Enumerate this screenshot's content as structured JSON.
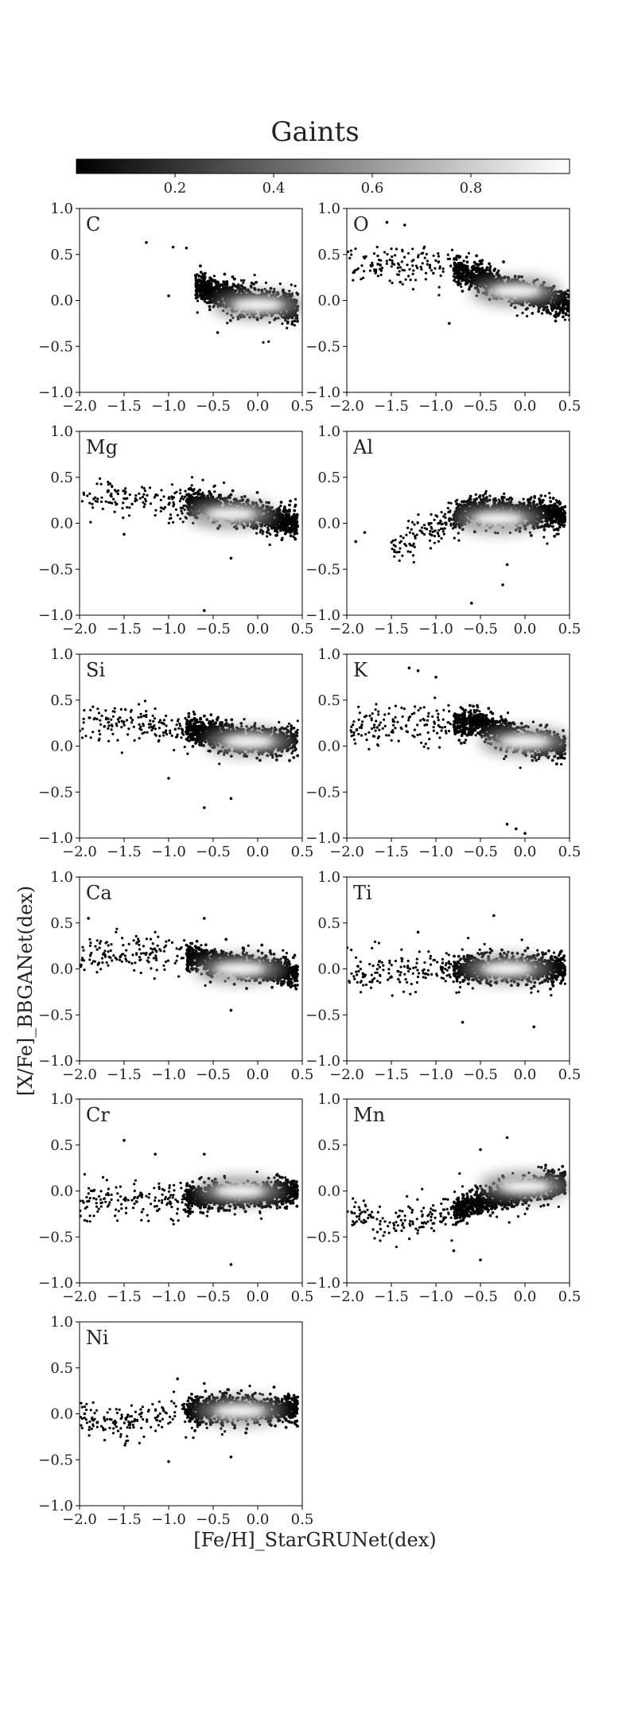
{
  "figure": {
    "title": "Gaints",
    "xlabel": "[Fe/H]_StarGRUNet(dex)",
    "ylabel": "[X/Fe]_BBGANet(dex)"
  },
  "colorbar": {
    "ticks": [
      "0.2",
      "0.4",
      "0.6",
      "0.8"
    ],
    "tick_values": [
      0.2,
      0.4,
      0.6,
      0.8
    ],
    "range": [
      0.0,
      1.0
    ],
    "colormap": "gray"
  },
  "chart_data": [
    {
      "type": "scatter",
      "element": "C",
      "xlim": [
        -2.0,
        0.5
      ],
      "ylim": [
        -1.0,
        1.0
      ],
      "xticks": [
        "−2.0",
        "−1.5",
        "−1.0",
        "−0.5",
        "0.0",
        "0.5"
      ],
      "yticks": [
        "−1.0",
        "−0.5",
        "0.0",
        "0.5",
        "1.0"
      ],
      "trend": {
        "x": [
          -0.7,
          -0.3,
          0.0,
          0.45
        ],
        "y": [
          0.15,
          0.05,
          -0.03,
          -0.08
        ]
      },
      "density_peak": [
        0.0,
        -0.05
      ],
      "outliers": [
        [
          -1.25,
          0.63
        ],
        [
          -0.95,
          0.58
        ],
        [
          -0.8,
          0.57
        ],
        [
          -1.0,
          0.05
        ],
        [
          -0.45,
          -0.35
        ]
      ]
    },
    {
      "type": "scatter",
      "element": "O",
      "xlim": [
        -2.0,
        0.5
      ],
      "ylim": [
        -1.0,
        1.0
      ],
      "xticks": [
        "−2.0",
        "−1.5",
        "−1.0",
        "−0.5",
        "0.0",
        "0.5"
      ],
      "yticks": [
        "−1.0",
        "−0.5",
        "0.0",
        "0.5",
        "1.0"
      ],
      "trend": {
        "x": [
          -2.0,
          -1.0,
          -0.5,
          0.0,
          0.5
        ],
        "y": [
          0.4,
          0.38,
          0.25,
          0.07,
          -0.03
        ]
      },
      "density_peak": [
        -0.1,
        0.1
      ],
      "outliers": [
        [
          -1.55,
          0.85
        ],
        [
          -1.35,
          0.82
        ],
        [
          -0.85,
          -0.25
        ],
        [
          -1.4,
          0.2
        ]
      ]
    },
    {
      "type": "scatter",
      "element": "Mg",
      "xlim": [
        -2.0,
        0.5
      ],
      "ylim": [
        -1.0,
        1.0
      ],
      "xticks": [
        "−2.0",
        "−1.5",
        "−1.0",
        "−0.5",
        "0.0",
        "0.5"
      ],
      "yticks": [
        "−1.0",
        "−0.5",
        "0.0",
        "0.5",
        "1.0"
      ],
      "trend": {
        "x": [
          -2.0,
          -1.0,
          -0.5,
          0.0,
          0.45
        ],
        "y": [
          0.28,
          0.25,
          0.18,
          0.08,
          0.0
        ]
      },
      "density_peak": [
        -0.3,
        0.1
      ],
      "outliers": [
        [
          -0.6,
          -0.95
        ],
        [
          -0.3,
          -0.38
        ],
        [
          -1.5,
          -0.12
        ]
      ]
    },
    {
      "type": "scatter",
      "element": "Al",
      "xlim": [
        -2.0,
        0.5
      ],
      "ylim": [
        -1.0,
        1.0
      ],
      "xticks": [
        "−2.0",
        "−1.5",
        "−1.0",
        "−0.5",
        "0.0",
        "0.5"
      ],
      "yticks": [
        "−1.0",
        "−0.5",
        "0.0",
        "0.5",
        "1.0"
      ],
      "trend": {
        "x": [
          -1.5,
          -1.0,
          -0.6,
          0.0,
          0.45
        ],
        "y": [
          -0.3,
          -0.05,
          0.15,
          0.1,
          0.08
        ]
      },
      "density_peak": [
        -0.3,
        0.05
      ],
      "outliers": [
        [
          -1.9,
          -0.2
        ],
        [
          -1.8,
          -0.1
        ],
        [
          -0.6,
          -0.87
        ],
        [
          -0.25,
          -0.67
        ],
        [
          -0.2,
          -0.45
        ]
      ]
    },
    {
      "type": "scatter",
      "element": "Si",
      "xlim": [
        -2.0,
        0.5
      ],
      "ylim": [
        -1.0,
        1.0
      ],
      "xticks": [
        "−2.0",
        "−1.5",
        "−1.0",
        "−0.5",
        "0.0",
        "0.5"
      ],
      "yticks": [
        "−1.0",
        "−0.5",
        "0.0",
        "0.5",
        "1.0"
      ],
      "trend": {
        "x": [
          -2.0,
          -1.0,
          -0.5,
          0.0,
          0.45
        ],
        "y": [
          0.22,
          0.22,
          0.13,
          0.05,
          0.05
        ]
      },
      "density_peak": [
        -0.1,
        0.05
      ],
      "outliers": [
        [
          -0.6,
          -0.67
        ],
        [
          -0.3,
          -0.57
        ],
        [
          -1.0,
          -0.35
        ]
      ]
    },
    {
      "type": "scatter",
      "element": "K",
      "xlim": [
        -2.0,
        0.5
      ],
      "ylim": [
        -1.0,
        1.0
      ],
      "xticks": [
        "−2.0",
        "−1.5",
        "−1.0",
        "−0.5",
        "0.0",
        "0.5"
      ],
      "yticks": [
        "−1.0",
        "−0.5",
        "0.0",
        "0.5",
        "1.0"
      ],
      "trend": {
        "x": [
          -2.0,
          -1.0,
          -0.5,
          0.0,
          0.45
        ],
        "y": [
          0.2,
          0.25,
          0.25,
          0.05,
          0.0
        ]
      },
      "density_peak": [
        0.0,
        0.05
      ],
      "outliers": [
        [
          -1.3,
          0.85
        ],
        [
          -1.2,
          0.82
        ],
        [
          -1.0,
          0.75
        ],
        [
          -0.1,
          -0.9
        ],
        [
          0.0,
          -0.95
        ],
        [
          -0.2,
          -0.85
        ]
      ]
    },
    {
      "type": "scatter",
      "element": "Ca",
      "xlim": [
        -2.0,
        0.5
      ],
      "ylim": [
        -1.0,
        1.0
      ],
      "xticks": [
        "−2.0",
        "−1.5",
        "−1.0",
        "−0.5",
        "0.0",
        "0.5"
      ],
      "yticks": [
        "−1.0",
        "−0.5",
        "0.0",
        "0.5",
        "1.0"
      ],
      "trend": {
        "x": [
          -2.0,
          -1.0,
          -0.5,
          0.0,
          0.45
        ],
        "y": [
          0.15,
          0.18,
          0.08,
          0.0,
          -0.05
        ]
      },
      "density_peak": [
        -0.2,
        0.0
      ],
      "outliers": [
        [
          -0.6,
          0.55
        ],
        [
          -1.9,
          0.55
        ],
        [
          -0.3,
          -0.45
        ]
      ]
    },
    {
      "type": "scatter",
      "element": "Ti",
      "xlim": [
        -2.0,
        0.5
      ],
      "ylim": [
        -1.0,
        1.0
      ],
      "xticks": [
        "−2.0",
        "−1.5",
        "−1.0",
        "−0.5",
        "0.0",
        "0.5"
      ],
      "yticks": [
        "−1.0",
        "−0.5",
        "0.0",
        "0.5",
        "1.0"
      ],
      "trend": {
        "x": [
          -2.0,
          -1.0,
          -0.5,
          0.0,
          0.45
        ],
        "y": [
          -0.05,
          0.0,
          0.0,
          0.0,
          0.0
        ]
      },
      "density_peak": [
        -0.2,
        0.0
      ],
      "outliers": [
        [
          -0.35,
          0.58
        ],
        [
          0.1,
          -0.63
        ],
        [
          -0.7,
          -0.58
        ],
        [
          -1.2,
          0.4
        ]
      ]
    },
    {
      "type": "scatter",
      "element": "Cr",
      "xlim": [
        -2.0,
        0.5
      ],
      "ylim": [
        -1.0,
        1.0
      ],
      "xticks": [
        "−2.0",
        "−1.5",
        "−1.0",
        "−0.5",
        "0.0",
        "0.5"
      ],
      "yticks": [
        "−1.0",
        "−0.5",
        "0.0",
        "0.5",
        "1.0"
      ],
      "trend": {
        "x": [
          -2.0,
          -1.0,
          -0.5,
          0.0,
          0.45
        ],
        "y": [
          -0.1,
          -0.1,
          -0.05,
          -0.05,
          0.0
        ]
      },
      "density_peak": [
        -0.2,
        0.0
      ],
      "outliers": [
        [
          -1.5,
          0.55
        ],
        [
          -1.15,
          0.4
        ],
        [
          -0.6,
          0.4
        ],
        [
          -0.3,
          -0.8
        ]
      ]
    },
    {
      "type": "scatter",
      "element": "Mn",
      "xlim": [
        -2.0,
        0.5
      ],
      "ylim": [
        -1.0,
        1.0
      ],
      "xticks": [
        "−2.0",
        "−1.5",
        "−1.0",
        "−0.5",
        "0.0",
        "0.5"
      ],
      "yticks": [
        "−1.0",
        "−0.5",
        "0.0",
        "0.5",
        "1.0"
      ],
      "trend": {
        "x": [
          -2.0,
          -1.5,
          -1.0,
          -0.5,
          0.0,
          0.45
        ],
        "y": [
          -0.25,
          -0.35,
          -0.28,
          -0.12,
          0.0,
          0.1
        ]
      },
      "density_peak": [
        0.0,
        0.05
      ],
      "outliers": [
        [
          -0.2,
          0.58
        ],
        [
          -0.5,
          0.45
        ],
        [
          -0.5,
          -0.75
        ],
        [
          -0.8,
          -0.65
        ]
      ]
    },
    {
      "type": "scatter",
      "element": "Ni",
      "xlim": [
        -2.0,
        0.5
      ],
      "ylim": [
        -1.0,
        1.0
      ],
      "xticks": [
        "−2.0",
        "−1.5",
        "−1.0",
        "−0.5",
        "0.0",
        "0.5"
      ],
      "yticks": [
        "−1.0",
        "−0.5",
        "0.0",
        "0.5",
        "1.0"
      ],
      "trend": {
        "x": [
          -2.0,
          -1.5,
          -1.0,
          -0.5,
          0.0,
          0.45
        ],
        "y": [
          -0.05,
          -0.12,
          0.0,
          0.06,
          0.05,
          0.05
        ]
      },
      "density_peak": [
        -0.2,
        0.03
      ],
      "outliers": [
        [
          -1.0,
          -0.52
        ],
        [
          -0.3,
          -0.47
        ],
        [
          -0.9,
          0.38
        ],
        [
          -0.6,
          0.33
        ]
      ]
    }
  ]
}
